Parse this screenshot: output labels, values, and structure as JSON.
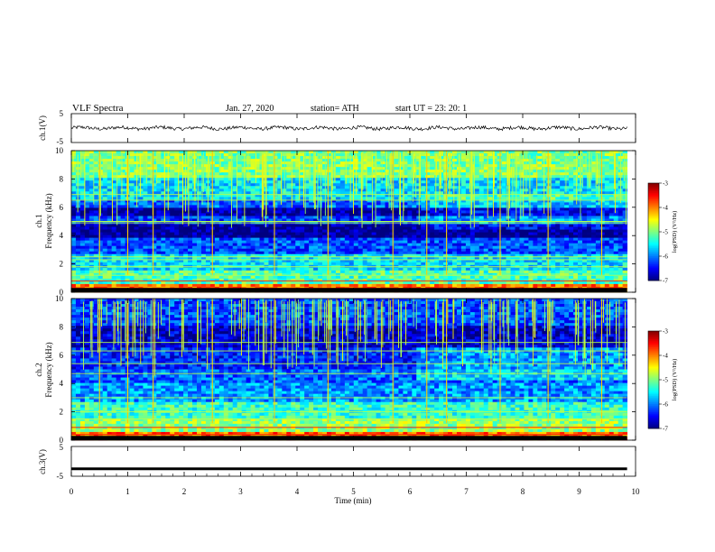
{
  "header": {
    "title": "VLF Spectra",
    "date": "Jan. 27, 2020",
    "station": "station= ATH",
    "start": "start UT = 23: 20: 1"
  },
  "chart_data": [
    {
      "type": "line",
      "panel": "ch1_waveform",
      "ylabel": "ch.1(V)",
      "ylim": [
        -5,
        5
      ],
      "yticks": [
        "5",
        "-5"
      ],
      "xlim": [
        0,
        10
      ],
      "trace": "noisy waveform centered near 0 V, amplitude about ±1 V",
      "series": [
        {
          "values_mean": 0,
          "amplitude": 1.0
        }
      ]
    },
    {
      "type": "heatmap",
      "panel": "ch1_spectrogram",
      "ylabel": "Frequency (kHz)",
      "channel_label": "ch.1",
      "ylim": [
        0,
        10
      ],
      "yticks": [
        "0",
        "2",
        "4",
        "6",
        "8",
        "10"
      ],
      "xlim": [
        0,
        10
      ],
      "colorbar": {
        "label": "log(PSD) (V²/Hz)",
        "range": [
          -7,
          -3
        ],
        "ticks": [
          "-3",
          "-4",
          "-5",
          "-6",
          "-7"
        ],
        "colormap": "jet"
      },
      "bands": [
        {
          "fmin": 0.0,
          "fmax": 0.5,
          "level": -4.0
        },
        {
          "fmin": 0.5,
          "fmax": 1.5,
          "level": -5.2
        },
        {
          "fmin": 1.5,
          "fmax": 2.6,
          "level": -5.6
        },
        {
          "fmin": 2.6,
          "fmax": 3.8,
          "level": -6.2
        },
        {
          "fmin": 3.8,
          "fmax": 4.9,
          "level": -6.95
        },
        {
          "fmin": 4.9,
          "fmax": 5.4,
          "level": -6.3
        },
        {
          "fmin": 5.4,
          "fmax": 6.0,
          "level": -6.9
        },
        {
          "fmin": 6.0,
          "fmax": 6.6,
          "level": -6.1
        },
        {
          "fmin": 6.6,
          "fmax": 8.0,
          "level": -5.6
        },
        {
          "fmin": 8.0,
          "fmax": 10.0,
          "level": -5.0
        }
      ],
      "lines_khz": [
        0.3,
        0.8,
        1.2,
        1.8,
        2.3,
        2.5,
        4.9,
        5.0,
        6.5,
        6.9
      ],
      "sferic_times_min": [
        0.5,
        1.0,
        1.45,
        2.5,
        3.6,
        4.55,
        5.7,
        6.3,
        6.65,
        7.6,
        8.45,
        9.4
      ]
    },
    {
      "type": "heatmap",
      "panel": "ch2_spectrogram",
      "ylabel": "Frequency (kHz)",
      "channel_label": "ch.2",
      "ylim": [
        0,
        10
      ],
      "yticks": [
        "0",
        "2",
        "4",
        "6",
        "8",
        "10"
      ],
      "xlim": [
        0,
        10
      ],
      "colorbar": {
        "label": "log(PSD) (V²/Hz)",
        "range": [
          -7,
          -3
        ],
        "ticks": [
          "-3",
          "-4",
          "-5",
          "-6",
          "-7"
        ],
        "colormap": "jet"
      },
      "bands": [
        {
          "fmin": 0.0,
          "fmax": 0.6,
          "level": -3.9
        },
        {
          "fmin": 0.6,
          "fmax": 1.6,
          "level": -4.9
        },
        {
          "fmin": 1.6,
          "fmax": 2.6,
          "level": -5.3
        },
        {
          "fmin": 2.6,
          "fmax": 4.0,
          "level": -5.9
        },
        {
          "fmin": 4.0,
          "fmax": 5.0,
          "level": -6.1
        },
        {
          "fmin": 5.0,
          "fmax": 6.5,
          "level": -6.4
        },
        {
          "fmin": 6.5,
          "fmax": 8.0,
          "level": -6.7
        },
        {
          "fmin": 8.0,
          "fmax": 10.0,
          "level": -6.2
        }
      ],
      "lines_khz": [
        0.4,
        0.9,
        1.5,
        2.0,
        3.0,
        4.7,
        5.4,
        6.3,
        6.9
      ],
      "sferic_times_min": [
        0.5,
        1.0,
        1.45,
        2.5,
        3.6,
        4.55,
        5.7,
        6.3,
        6.65,
        7.6,
        8.45,
        9.4
      ]
    },
    {
      "type": "line",
      "panel": "ch3_waveform",
      "ylabel": "ch.3(V)",
      "ylim": [
        -5,
        5
      ],
      "yticks": [
        "5",
        "-5"
      ],
      "xlim": [
        0,
        10
      ],
      "xlabel": "Time (min)",
      "xticks": [
        "0",
        "1",
        "2",
        "3",
        "4",
        "5",
        "6",
        "7",
        "8",
        "9",
        "10"
      ],
      "series": [
        {
          "values_mean": -2.2,
          "amplitude": 0.15
        }
      ]
    }
  ]
}
